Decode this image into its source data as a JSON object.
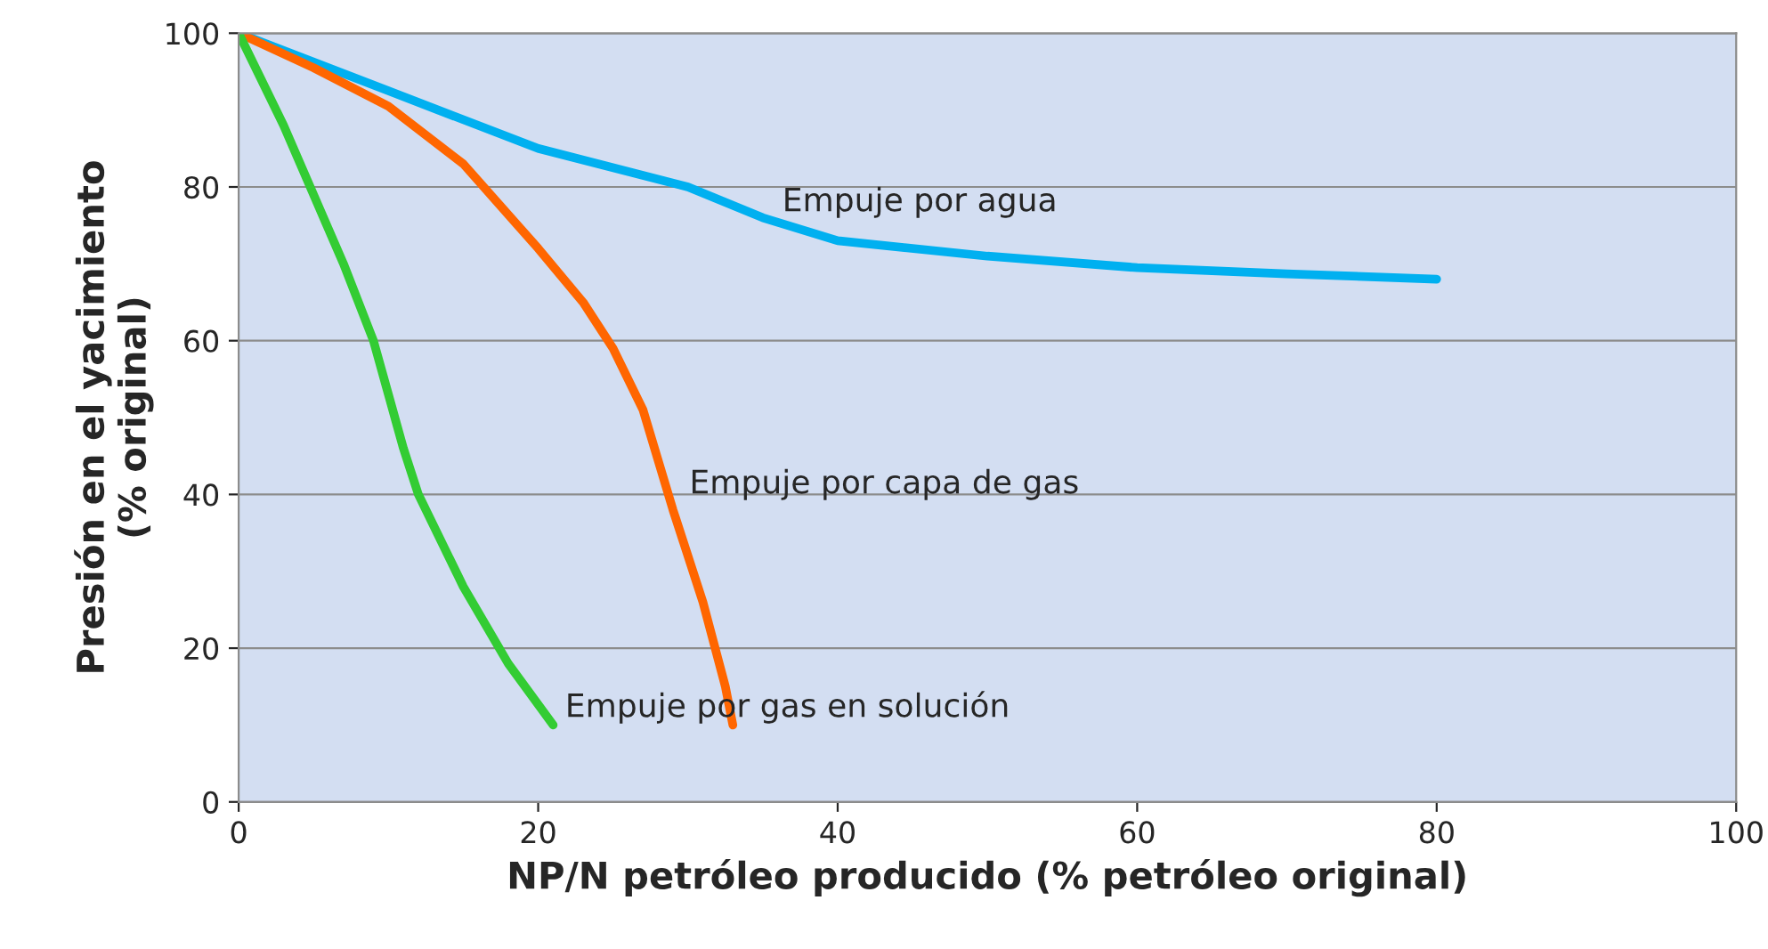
{
  "chart_data": {
    "type": "line",
    "xlabel": "NP/N petróleo producido (% petróleo original)",
    "ylabel": "Presión en el yacimiento\n(% original)",
    "series": [
      {
        "color": "#00b0f0",
        "x": [
          0,
          10,
          20,
          30,
          35,
          40,
          50,
          60,
          70,
          80
        ],
        "values": [
          100,
          92.5,
          85,
          80,
          76,
          73,
          71,
          69.5,
          68.7,
          68
        ]
      },
      {
        "color": "#ff6600",
        "x": [
          0,
          5,
          10,
          15,
          20,
          23,
          25,
          27,
          29,
          31,
          32.5,
          33
        ],
        "values": [
          100,
          95.5,
          90.5,
          83,
          72,
          65,
          59,
          51,
          38,
          26,
          15,
          10
        ]
      },
      {
        "color": "#33cc33",
        "x": [
          0,
          3,
          5,
          7,
          9,
          10,
          11,
          12,
          15,
          18,
          21
        ],
        "values": [
          100,
          88,
          79,
          70,
          60,
          53,
          46,
          40,
          28,
          18,
          10
        ]
      }
    ],
    "annotations": [
      "Empuje por agua",
      "Empuje por capa de gas",
      "Empuje por gas en solución"
    ],
    "xlim": [
      0,
      100
    ],
    "ylim": [
      0,
      100
    ],
    "xticks": [
      0,
      20,
      40,
      60,
      80,
      100
    ],
    "yticks": [
      0,
      20,
      40,
      60,
      80,
      100
    ],
    "grid": "y",
    "line_style": "solid",
    "marker": "none"
  }
}
